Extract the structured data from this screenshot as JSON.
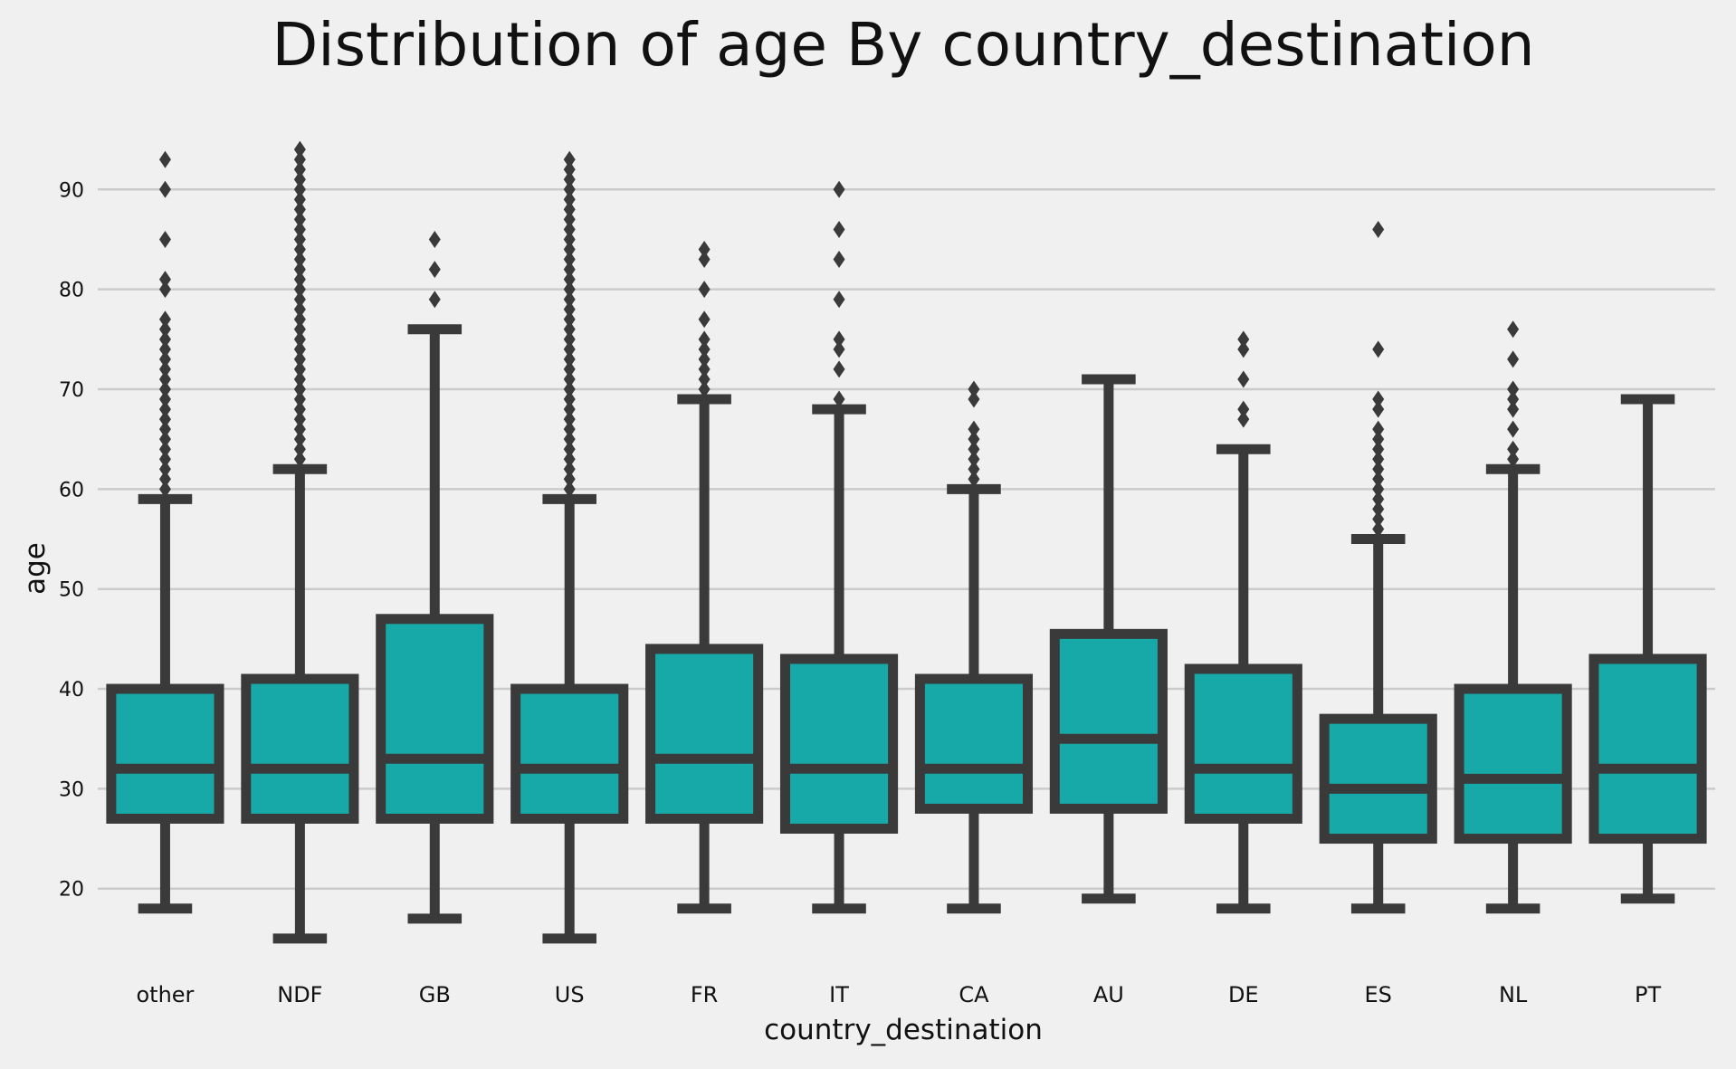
{
  "chart_data": {
    "type": "box",
    "title": "Distribution of age By country_destination",
    "xlabel": "country_destination",
    "ylabel": "age",
    "ylim": [
      12,
      99
    ],
    "yticks": [
      20,
      30,
      40,
      50,
      60,
      70,
      80,
      90
    ],
    "grid": "horizontal",
    "colors": {
      "box_fill": "#17a8a8",
      "line": "#3a3a3a",
      "background": "#f0f0f0",
      "grid": "#cbcbcb"
    },
    "categories": [
      "other",
      "NDF",
      "GB",
      "US",
      "FR",
      "IT",
      "CA",
      "AU",
      "DE",
      "ES",
      "NL",
      "PT"
    ],
    "boxes": [
      {
        "label": "other",
        "q1": 27,
        "median": 32,
        "q3": 40,
        "whisker_low": 18,
        "whisker_high": 59,
        "outliers": [
          60,
          61,
          62,
          63,
          64,
          65,
          66,
          67,
          68,
          69,
          70,
          71,
          72,
          73,
          74,
          75,
          76,
          77,
          80,
          81,
          85,
          90,
          93
        ]
      },
      {
        "label": "NDF",
        "q1": 27,
        "median": 32,
        "q3": 41,
        "whisker_low": 15,
        "whisker_high": 62,
        "outliers": [
          63,
          64,
          65,
          66,
          67,
          68,
          69,
          70,
          71,
          72,
          73,
          74,
          75,
          76,
          77,
          78,
          79,
          80,
          81,
          82,
          83,
          84,
          85,
          86,
          87,
          88,
          89,
          90,
          91,
          92,
          93,
          94
        ]
      },
      {
        "label": "GB",
        "q1": 27,
        "median": 33,
        "q3": 47,
        "whisker_low": 17,
        "whisker_high": 76,
        "outliers": [
          79,
          82,
          85
        ]
      },
      {
        "label": "US",
        "q1": 27,
        "median": 32,
        "q3": 40,
        "whisker_low": 15,
        "whisker_high": 59,
        "outliers": [
          60,
          61,
          62,
          63,
          64,
          65,
          66,
          67,
          68,
          69,
          70,
          71,
          72,
          73,
          74,
          75,
          76,
          77,
          78,
          79,
          80,
          81,
          82,
          83,
          84,
          85,
          86,
          87,
          88,
          89,
          90,
          91,
          92,
          93
        ]
      },
      {
        "label": "FR",
        "q1": 27,
        "median": 33,
        "q3": 44,
        "whisker_low": 18,
        "whisker_high": 69,
        "outliers": [
          70,
          71,
          72,
          73,
          74,
          75,
          77,
          80,
          83,
          84
        ]
      },
      {
        "label": "IT",
        "q1": 26,
        "median": 32,
        "q3": 43,
        "whisker_low": 18,
        "whisker_high": 68,
        "outliers": [
          69,
          72,
          74,
          75,
          79,
          83,
          86,
          90
        ]
      },
      {
        "label": "CA",
        "q1": 28,
        "median": 32,
        "q3": 41,
        "whisker_low": 18,
        "whisker_high": 60,
        "outliers": [
          61,
          62,
          63,
          64,
          65,
          66,
          69,
          70
        ]
      },
      {
        "label": "AU",
        "q1": 28,
        "median": 35,
        "q3": 45.5,
        "whisker_low": 19,
        "whisker_high": 71,
        "outliers": []
      },
      {
        "label": "DE",
        "q1": 27,
        "median": 32,
        "q3": 42,
        "whisker_low": 18,
        "whisker_high": 64,
        "outliers": [
          67,
          68,
          71,
          74,
          75
        ]
      },
      {
        "label": "ES",
        "q1": 25,
        "median": 30,
        "q3": 37,
        "whisker_low": 18,
        "whisker_high": 55,
        "outliers": [
          56,
          57,
          58,
          59,
          60,
          61,
          62,
          63,
          64,
          65,
          66,
          68,
          69,
          74,
          86
        ]
      },
      {
        "label": "NL",
        "q1": 25,
        "median": 31,
        "q3": 40,
        "whisker_low": 18,
        "whisker_high": 62,
        "outliers": [
          63,
          64,
          66,
          68,
          69,
          70,
          73,
          76
        ]
      },
      {
        "label": "PT",
        "q1": 25,
        "median": 32,
        "q3": 43,
        "whisker_low": 19,
        "whisker_high": 69,
        "outliers": []
      }
    ]
  }
}
